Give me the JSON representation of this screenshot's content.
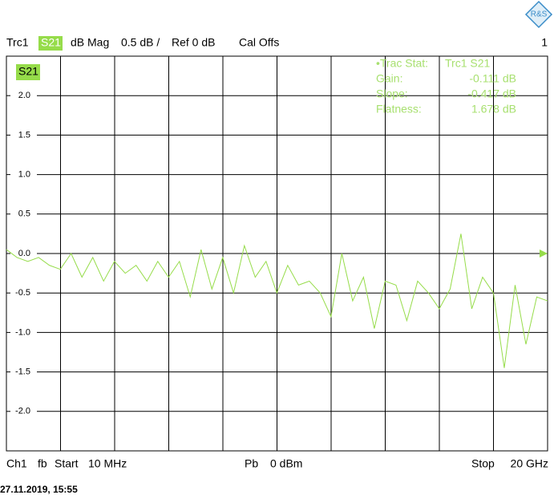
{
  "header": {
    "trace": "Trc1",
    "param": "S21",
    "format": "dB Mag",
    "scale": "0.5 dB /",
    "ref": "Ref 0 dB",
    "cal": "Cal Offs",
    "channel_no": "1"
  },
  "stats": {
    "title": "•Trac Stat:",
    "trace": "Trc1 S21",
    "rows": [
      [
        "Gain:",
        "-0.111 dB"
      ],
      [
        "Slope:",
        "-0.417 dB"
      ],
      [
        "Flatness:",
        "1.678 dB"
      ]
    ]
  },
  "footer": {
    "channel": "Ch1",
    "mode": "fb",
    "start_label": "Start",
    "start": "10 MHz",
    "power_label": "Pb",
    "power": "0 dBm",
    "stop_label": "Stop",
    "stop": "20 GHz"
  },
  "timestamp": "27.11.2019, 15:55",
  "chart_data": {
    "type": "line",
    "xlim": [
      0.01,
      20
    ],
    "ylim": [
      -2.5,
      2.5
    ],
    "yticks": [
      {
        "value": 2,
        "label": "2.0"
      },
      1.5,
      {
        "value": 1,
        "label": "1.0"
      },
      0.5,
      {
        "value": 0,
        "label": "0.0"
      },
      -0.5,
      {
        "value": -1,
        "label": "-1.0"
      },
      -1.5,
      {
        "value": -2,
        "label": "-2.0"
      }
    ],
    "grid": true,
    "series": [
      {
        "name": "S21",
        "color": "#96dc4a",
        "x": [
          0.01,
          0.4,
          0.8,
          1.2,
          1.6,
          2.0,
          2.4,
          2.8,
          3.2,
          3.6,
          4.0,
          4.4,
          4.8,
          5.2,
          5.6,
          6.0,
          6.4,
          6.8,
          7.2,
          7.6,
          8.0,
          8.4,
          8.8,
          9.2,
          9.6,
          10.0,
          10.4,
          10.8,
          11.2,
          11.6,
          12.0,
          12.4,
          12.8,
          13.2,
          13.6,
          14.0,
          14.4,
          14.8,
          15.2,
          15.6,
          16.0,
          16.4,
          16.8,
          17.2,
          17.6,
          18.0,
          18.4,
          18.8,
          19.2,
          19.6,
          20.0
        ],
        "values": [
          0.05,
          -0.05,
          -0.1,
          -0.05,
          -0.15,
          -0.2,
          0.0,
          -0.3,
          -0.05,
          -0.35,
          -0.1,
          -0.25,
          -0.15,
          -0.35,
          -0.1,
          -0.3,
          -0.1,
          -0.55,
          0.05,
          -0.45,
          -0.05,
          -0.5,
          0.1,
          -0.3,
          -0.1,
          -0.5,
          -0.15,
          -0.4,
          -0.35,
          -0.5,
          -0.8,
          0.0,
          -0.6,
          -0.3,
          -0.95,
          -0.35,
          -0.4,
          -0.85,
          -0.35,
          -0.5,
          -0.7,
          -0.45,
          0.25,
          -0.7,
          -0.3,
          -0.5,
          -1.45,
          -0.4,
          -1.15,
          -0.55,
          -0.6
        ]
      }
    ]
  }
}
